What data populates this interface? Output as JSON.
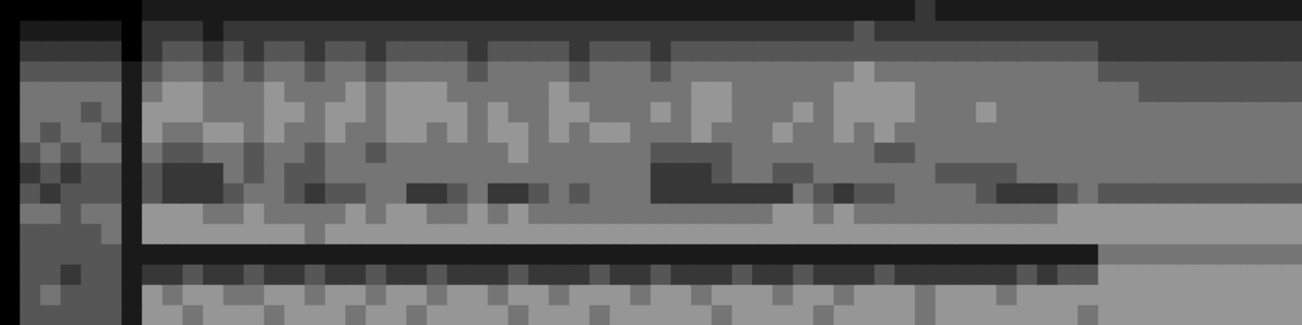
{
  "chart_data": {
    "type": "heatmap",
    "tick_labels": false,
    "grid": false,
    "cells": [
      [
        0,
        0,
        0,
        0,
        0,
        0,
        0,
        1,
        1,
        1,
        1,
        1,
        1,
        1,
        1,
        1,
        1,
        1,
        1,
        1,
        1,
        1,
        1,
        1,
        1,
        1,
        1,
        1,
        1,
        1,
        1,
        1,
        1,
        1,
        1,
        1,
        1,
        1,
        1,
        1,
        1,
        1,
        1,
        1,
        1,
        2,
        1,
        1,
        1,
        1,
        1,
        1,
        1,
        1,
        1,
        1,
        1,
        1,
        1,
        1,
        1,
        1,
        1,
        1
      ],
      [
        0,
        1,
        1,
        1,
        1,
        1,
        0,
        2,
        2,
        2,
        1,
        2,
        2,
        2,
        2,
        2,
        2,
        2,
        2,
        2,
        2,
        2,
        2,
        2,
        2,
        2,
        2,
        2,
        2,
        2,
        2,
        2,
        2,
        2,
        2,
        2,
        2,
        2,
        2,
        2,
        2,
        2,
        3,
        2,
        2,
        2,
        2,
        2,
        2,
        2,
        2,
        2,
        2,
        2,
        2,
        2,
        2,
        2,
        2,
        2,
        2,
        2,
        2,
        2
      ],
      [
        0,
        2,
        2,
        2,
        2,
        2,
        0,
        2,
        3,
        3,
        2,
        3,
        2,
        3,
        3,
        2,
        3,
        3,
        2,
        3,
        3,
        3,
        3,
        2,
        3,
        3,
        3,
        3,
        2,
        3,
        3,
        3,
        2,
        3,
        3,
        3,
        3,
        3,
        3,
        3,
        3,
        3,
        3,
        3,
        3,
        3,
        3,
        3,
        3,
        3,
        3,
        3,
        3,
        3,
        2,
        2,
        2,
        2,
        2,
        2,
        2,
        2,
        2,
        2
      ],
      [
        0,
        3,
        3,
        3,
        3,
        3,
        1,
        3,
        4,
        4,
        3,
        4,
        3,
        4,
        4,
        3,
        4,
        4,
        3,
        4,
        4,
        4,
        4,
        3,
        4,
        4,
        4,
        4,
        3,
        4,
        4,
        4,
        3,
        4,
        4,
        4,
        4,
        4,
        4,
        4,
        4,
        4,
        5,
        4,
        4,
        4,
        4,
        4,
        4,
        4,
        4,
        4,
        4,
        4,
        3,
        3,
        3,
        3,
        3,
        3,
        3,
        3,
        3,
        3
      ],
      [
        0,
        4,
        4,
        4,
        4,
        4,
        1,
        4,
        5,
        5,
        4,
        4,
        4,
        5,
        4,
        4,
        4,
        5,
        4,
        5,
        5,
        5,
        4,
        4,
        4,
        4,
        4,
        5,
        4,
        4,
        4,
        4,
        4,
        4,
        5,
        5,
        4,
        4,
        4,
        4,
        4,
        5,
        5,
        5,
        5,
        4,
        4,
        4,
        4,
        4,
        4,
        4,
        4,
        4,
        4,
        4,
        3,
        3,
        3,
        3,
        3,
        3,
        3,
        3
      ],
      [
        0,
        4,
        4,
        4,
        3,
        4,
        1,
        5,
        5,
        5,
        4,
        4,
        4,
        5,
        5,
        4,
        5,
        5,
        4,
        5,
        5,
        5,
        5,
        4,
        5,
        4,
        4,
        5,
        5,
        4,
        4,
        4,
        5,
        4,
        5,
        5,
        4,
        4,
        4,
        5,
        4,
        5,
        5,
        5,
        5,
        4,
        4,
        4,
        5,
        4,
        4,
        4,
        4,
        4,
        4,
        4,
        4,
        4,
        4,
        4,
        4,
        4,
        4,
        4
      ],
      [
        0,
        4,
        3,
        4,
        4,
        3,
        1,
        5,
        4,
        4,
        5,
        5,
        4,
        5,
        4,
        4,
        5,
        4,
        4,
        5,
        5,
        4,
        5,
        4,
        5,
        5,
        4,
        5,
        4,
        5,
        5,
        4,
        4,
        4,
        5,
        4,
        4,
        4,
        5,
        4,
        4,
        5,
        4,
        5,
        4,
        4,
        4,
        4,
        4,
        4,
        4,
        4,
        4,
        4,
        4,
        4,
        4,
        4,
        4,
        4,
        4,
        4,
        4,
        4
      ],
      [
        0,
        3,
        4,
        3,
        4,
        4,
        1,
        4,
        3,
        3,
        4,
        4,
        3,
        4,
        4,
        3,
        4,
        4,
        3,
        4,
        4,
        4,
        4,
        4,
        4,
        5,
        4,
        4,
        4,
        4,
        4,
        4,
        3,
        3,
        3,
        3,
        4,
        4,
        4,
        4,
        4,
        4,
        4,
        3,
        3,
        4,
        4,
        4,
        4,
        4,
        4,
        4,
        4,
        4,
        4,
        4,
        4,
        4,
        4,
        4,
        4,
        4,
        4,
        4
      ],
      [
        0,
        2,
        3,
        2,
        3,
        3,
        1,
        3,
        2,
        2,
        2,
        4,
        3,
        4,
        3,
        3,
        4,
        4,
        4,
        4,
        4,
        4,
        4,
        4,
        4,
        4,
        4,
        4,
        4,
        4,
        4,
        4,
        2,
        2,
        2,
        3,
        4,
        4,
        3,
        3,
        4,
        4,
        4,
        4,
        4,
        4,
        3,
        3,
        3,
        3,
        4,
        4,
        4,
        4,
        4,
        4,
        4,
        4,
        4,
        4,
        4,
        4,
        4,
        4
      ],
      [
        0,
        3,
        2,
        3,
        3,
        3,
        1,
        3,
        2,
        2,
        2,
        3,
        4,
        4,
        3,
        2,
        3,
        3,
        4,
        4,
        2,
        2,
        3,
        4,
        2,
        2,
        3,
        4,
        3,
        4,
        4,
        4,
        2,
        2,
        2,
        2,
        2,
        2,
        2,
        4,
        3,
        2,
        3,
        3,
        4,
        4,
        4,
        4,
        3,
        2,
        2,
        2,
        3,
        4,
        3,
        3,
        3,
        3,
        3,
        3,
        3,
        3,
        3,
        3
      ],
      [
        0,
        4,
        4,
        3,
        4,
        4,
        1,
        5,
        5,
        5,
        4,
        4,
        5,
        4,
        4,
        4,
        4,
        5,
        4,
        5,
        5,
        4,
        4,
        5,
        4,
        5,
        4,
        4,
        4,
        4,
        4,
        4,
        4,
        4,
        4,
        4,
        4,
        4,
        5,
        5,
        4,
        5,
        4,
        4,
        4,
        4,
        4,
        4,
        4,
        4,
        4,
        4,
        5,
        5,
        5,
        5,
        5,
        5,
        5,
        5,
        5,
        5,
        5,
        5
      ],
      [
        0,
        3,
        3,
        3,
        3,
        4,
        1,
        5,
        5,
        5,
        5,
        5,
        5,
        5,
        5,
        4,
        5,
        5,
        5,
        5,
        5,
        5,
        5,
        5,
        5,
        5,
        5,
        5,
        5,
        5,
        5,
        5,
        5,
        5,
        5,
        5,
        5,
        5,
        5,
        5,
        5,
        5,
        5,
        5,
        5,
        5,
        5,
        5,
        5,
        5,
        5,
        5,
        5,
        5,
        5,
        5,
        5,
        5,
        5,
        5,
        5,
        5,
        5,
        5
      ],
      [
        0,
        3,
        3,
        3,
        3,
        3,
        1,
        1,
        1,
        1,
        1,
        1,
        1,
        1,
        1,
        1,
        1,
        1,
        1,
        1,
        1,
        1,
        1,
        1,
        1,
        1,
        1,
        1,
        1,
        1,
        1,
        1,
        1,
        1,
        1,
        1,
        1,
        1,
        1,
        1,
        1,
        1,
        1,
        1,
        1,
        1,
        1,
        1,
        1,
        1,
        1,
        1,
        1,
        1,
        4,
        4,
        4,
        4,
        4,
        4,
        4,
        4,
        4,
        4
      ],
      [
        0,
        3,
        3,
        2,
        3,
        3,
        1,
        2,
        2,
        3,
        2,
        2,
        3,
        2,
        2,
        3,
        2,
        2,
        3,
        2,
        2,
        3,
        2,
        2,
        2,
        3,
        2,
        2,
        2,
        3,
        2,
        2,
        3,
        2,
        2,
        2,
        3,
        2,
        2,
        3,
        2,
        2,
        2,
        3,
        2,
        2,
        2,
        2,
        2,
        2,
        3,
        2,
        3,
        3,
        5,
        5,
        5,
        5,
        5,
        5,
        5,
        5,
        5,
        5
      ],
      [
        0,
        3,
        4,
        3,
        3,
        3,
        1,
        5,
        4,
        5,
        5,
        4,
        4,
        5,
        5,
        4,
        5,
        5,
        4,
        5,
        5,
        4,
        5,
        5,
        4,
        5,
        5,
        4,
        5,
        5,
        5,
        4,
        5,
        5,
        4,
        5,
        5,
        5,
        4,
        5,
        5,
        4,
        5,
        5,
        5,
        4,
        5,
        5,
        5,
        4,
        5,
        5,
        5,
        5,
        5,
        5,
        5,
        5,
        5,
        5,
        5,
        5,
        5,
        5
      ],
      [
        0,
        3,
        3,
        3,
        3,
        3,
        1,
        5,
        5,
        4,
        5,
        5,
        5,
        4,
        5,
        5,
        5,
        4,
        5,
        5,
        4,
        5,
        5,
        5,
        5,
        4,
        5,
        5,
        5,
        4,
        5,
        5,
        5,
        5,
        5,
        4,
        5,
        5,
        5,
        5,
        4,
        5,
        5,
        5,
        5,
        4,
        5,
        5,
        5,
        5,
        5,
        5,
        5,
        4,
        5,
        5,
        5,
        5,
        5,
        5,
        5,
        5,
        5,
        5
      ]
    ]
  }
}
